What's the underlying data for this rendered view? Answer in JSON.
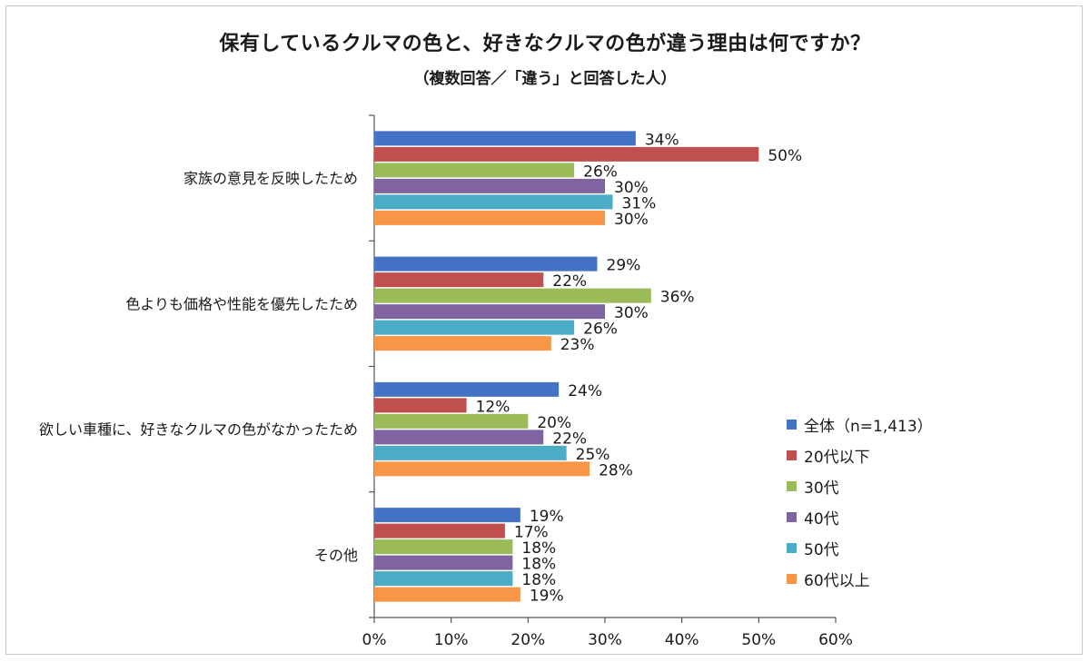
{
  "title": "保有しているクルマの色と、好きなクルマの色が違う理由は何ですか？",
  "subtitle": "（複数回答／「違う」と回答した人）",
  "chart_data": {
    "type": "bar",
    "orientation": "horizontal",
    "categories": [
      "家族の意見を反映したため",
      "色よりも価格や性能を優先したため",
      "欲しい車種に、好きなクルマの色がなかったため",
      "その他"
    ],
    "series": [
      {
        "name": "全体（n=1,413）",
        "color": "#4472c4",
        "values": [
          34,
          29,
          24,
          19
        ]
      },
      {
        "name": "20代以下",
        "color": "#c0504d",
        "values": [
          50,
          22,
          12,
          17
        ]
      },
      {
        "name": "30代",
        "color": "#9bbb59",
        "values": [
          26,
          36,
          20,
          18
        ]
      },
      {
        "name": "40代",
        "color": "#8064a2",
        "values": [
          30,
          30,
          22,
          18
        ]
      },
      {
        "name": "50代",
        "color": "#4bacc6",
        "values": [
          31,
          26,
          25,
          18
        ]
      },
      {
        "name": "60代以上",
        "color": "#f79646",
        "values": [
          30,
          23,
          28,
          19
        ]
      }
    ],
    "xlim": [
      0,
      60
    ],
    "xticks": [
      "0%",
      "10%",
      "20%",
      "30%",
      "40%",
      "50%",
      "60%"
    ],
    "value_suffix": "%",
    "grid": false,
    "legend_position": "right"
  }
}
